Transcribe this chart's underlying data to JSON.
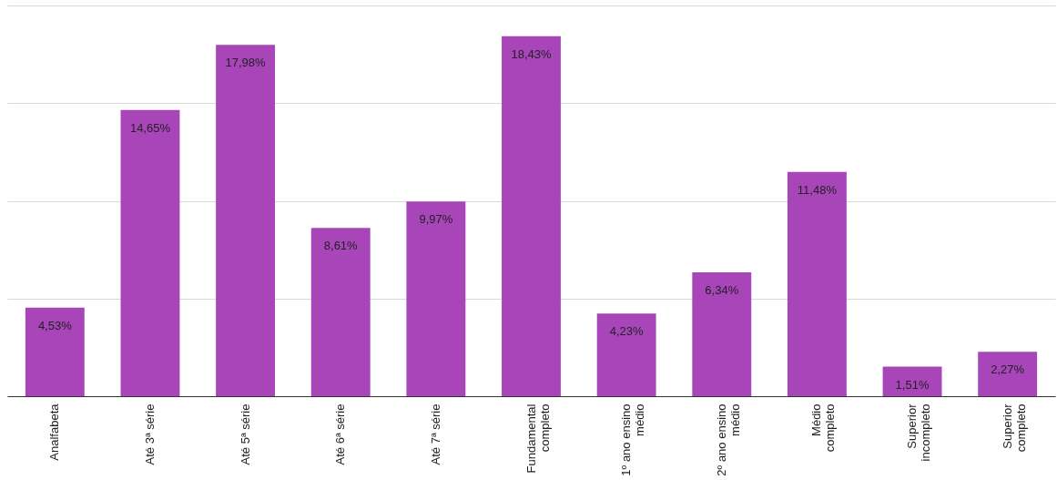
{
  "chart_data": {
    "type": "bar",
    "categories": [
      "Analfabeta",
      "Até 3ª série",
      "Até 5ª série",
      "Até 6ª série",
      "Até 7ª série",
      "Fundamental completo",
      "1º ano ensino médio",
      "2º ano ensino médio",
      "Médio completo",
      "Superior incompleto",
      "Superior completo"
    ],
    "values": [
      4.53,
      14.65,
      17.98,
      8.61,
      9.97,
      18.43,
      4.23,
      6.34,
      11.48,
      1.51,
      2.27
    ],
    "value_labels": [
      "4,53%",
      "14,65%",
      "17,98%",
      "8,61%",
      "9,97%",
      "18,43%",
      "4,23%",
      "6,34%",
      "11,48%",
      "1,51%",
      "2,27%"
    ],
    "color": "#a745b9",
    "ylim": [
      0,
      20
    ],
    "yticks": [
      0,
      5,
      10,
      15,
      20
    ],
    "grid": "y",
    "tick_labels": "x"
  }
}
